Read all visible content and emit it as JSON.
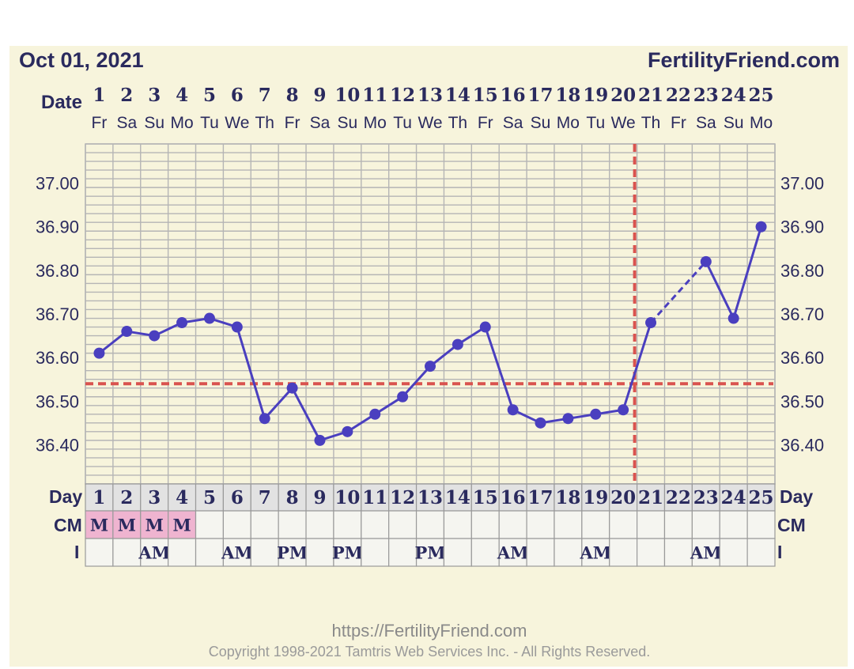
{
  "header": {
    "date_label": "Oct 01, 2021",
    "brand": "FertilityFriend.com"
  },
  "row_labels": {
    "date": "Date",
    "day": "Day",
    "cm": "CM",
    "i": "I"
  },
  "footer": {
    "url": "https://FertilityFriend.com",
    "copyright": "Copyright 1998-2021 Tamtris Web Services Inc. - All Rights Reserved."
  },
  "colors": {
    "page_bg": "#f7f4dc",
    "grid": "#b5b5b5",
    "line": "#4a3fbf",
    "coverline": "#d9534f",
    "cm_fill": "#efb4d0",
    "text": "#2a2a5e",
    "row_day_bg": "#e2e2e2",
    "row_bg": "#f5f5f0"
  },
  "chart_data": {
    "type": "line",
    "dates": [
      "1",
      "2",
      "3",
      "4",
      "5",
      "6",
      "7",
      "8",
      "9",
      "10",
      "11",
      "12",
      "13",
      "14",
      "15",
      "16",
      "17",
      "18",
      "19",
      "20",
      "21",
      "22",
      "23",
      "24",
      "25"
    ],
    "weekdays": [
      "Fr",
      "Sa",
      "Su",
      "Mo",
      "Tu",
      "We",
      "Th",
      "Fr",
      "Sa",
      "Su",
      "Mo",
      "Tu",
      "We",
      "Th",
      "Fr",
      "Sa",
      "Su",
      "Mo",
      "Tu",
      "We",
      "Th",
      "Fr",
      "Sa",
      "Su",
      "Mo"
    ],
    "cycle_days": [
      "1",
      "2",
      "3",
      "4",
      "5",
      "6",
      "7",
      "8",
      "9",
      "10",
      "11",
      "12",
      "13",
      "14",
      "15",
      "16",
      "17",
      "18",
      "19",
      "20",
      "21",
      "22",
      "23",
      "24",
      "25"
    ],
    "temperatures": [
      36.61,
      36.66,
      36.65,
      36.68,
      36.69,
      36.67,
      36.46,
      36.53,
      36.41,
      36.43,
      36.47,
      36.51,
      36.58,
      36.63,
      36.67,
      36.48,
      36.45,
      36.46,
      36.47,
      36.48,
      36.68,
      null,
      36.82,
      36.69,
      36.9
    ],
    "y_ticks": [
      "37.00",
      "36.90",
      "36.80",
      "36.70",
      "36.60",
      "36.50",
      "36.40"
    ],
    "y_tick_values": [
      37.0,
      36.9,
      36.8,
      36.7,
      36.6,
      36.5,
      36.4
    ],
    "ylim": [
      36.31,
      37.09
    ],
    "coverline": 36.54,
    "ovulation_day": 20,
    "cm": [
      "M",
      "M",
      "M",
      "M",
      "",
      "",
      "",
      "",
      "",
      "",
      "",
      "",
      "",
      "",
      "",
      "",
      "",
      "",
      "",
      "",
      "",
      "",
      "",
      "",
      ""
    ],
    "intercourse": [
      "",
      "",
      "AM",
      "",
      "",
      "AM",
      "",
      "PM",
      "",
      "PM",
      "",
      "",
      "PM",
      "",
      "",
      "AM",
      "",
      "",
      "AM",
      "",
      "",
      "",
      "AM",
      "",
      ""
    ]
  }
}
